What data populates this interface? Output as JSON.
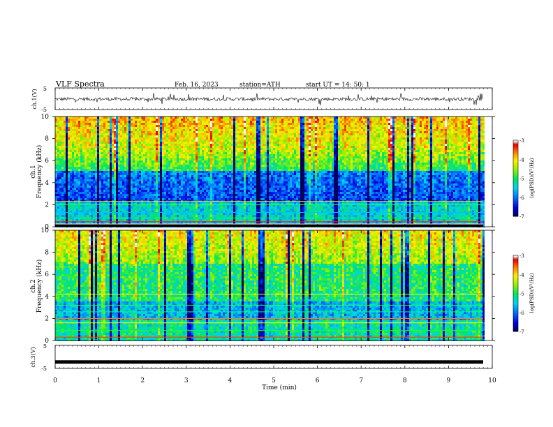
{
  "header": {
    "title": "VLF  Spectra",
    "date": "Feb. 16, 2023",
    "station": "station=ATH",
    "start": "start  UT  =   14: 50: 1"
  },
  "chart_data": [
    {
      "type": "line",
      "panel": "ch1-waveform",
      "ylabel": "ch.1(V)",
      "yticks": [
        "5",
        "-5"
      ],
      "ylim": [
        -5,
        5
      ],
      "description_values": "noise waveform centered near 0 V, amplitude ~±1 V with spikes to ~±2.5 V",
      "xlim": [
        0,
        10
      ]
    },
    {
      "type": "heatmap",
      "panel": "ch1-spectrogram",
      "ylabel": "ch.1\nFrequency  (kHz)",
      "ylabel_lines": [
        "ch.1",
        "Frequency  (kHz)"
      ],
      "yticks": [
        "0",
        "2",
        "4",
        "6",
        "8",
        "10"
      ],
      "ylim": [
        0,
        10
      ],
      "xlim": [
        0,
        9.8
      ],
      "colorbar": {
        "label": "log(PSD)(V²/Hz)",
        "ticks": [
          "-3",
          "-4",
          "-5",
          "-6",
          "-7"
        ],
        "range": [
          -7,
          -3
        ],
        "colormap": [
          "#000080",
          "#0000ff",
          "#00bfff",
          "#00ff80",
          "#80ff00",
          "#ffff00",
          "#ff8000",
          "#ff0000",
          "#ffffff"
        ]
      },
      "features": {
        "high_band_khz": [
          6,
          10
        ],
        "high_band_level": -4.0,
        "mid_band_khz": [
          2,
          5
        ],
        "mid_band_level": -6.0,
        "low_band_khz": [
          0,
          2
        ],
        "low_band_level": -5.0,
        "saturated_line_khz": 0.1
      }
    },
    {
      "type": "heatmap",
      "panel": "ch2-spectrogram",
      "ylabel_lines": [
        "ch.2",
        "Frequency  (kHz)"
      ],
      "yticks": [
        "0",
        "2",
        "4",
        "6",
        "8",
        "10"
      ],
      "ylim": [
        0,
        10
      ],
      "xlim": [
        0,
        9.8
      ],
      "colorbar": {
        "label": "log(PSD)(V²/Hz)",
        "ticks": [
          "-3",
          "-4",
          "-5",
          "-6",
          "-7"
        ],
        "range": [
          -7,
          -3
        ]
      },
      "features": {
        "high_band_khz": [
          6,
          10
        ],
        "high_band_level": -4.2,
        "mid_band_khz": [
          3,
          6
        ],
        "mid_band_level": -5.0,
        "low_band_khz": [
          0,
          3
        ],
        "low_band_level": -5.4
      }
    },
    {
      "type": "line",
      "panel": "ch3-waveform",
      "ylabel": "ch.3(V)",
      "yticks": [
        "5",
        "-5"
      ],
      "ylim": [
        -5,
        5
      ],
      "constant_value": -2.2,
      "xlim": [
        0,
        9.8
      ]
    }
  ],
  "xaxis": {
    "label": "Time  (min)",
    "ticks": [
      "0",
      "1",
      "2",
      "3",
      "4",
      "5",
      "6",
      "7",
      "8",
      "9",
      "10"
    ],
    "xlim": [
      0,
      10
    ]
  }
}
